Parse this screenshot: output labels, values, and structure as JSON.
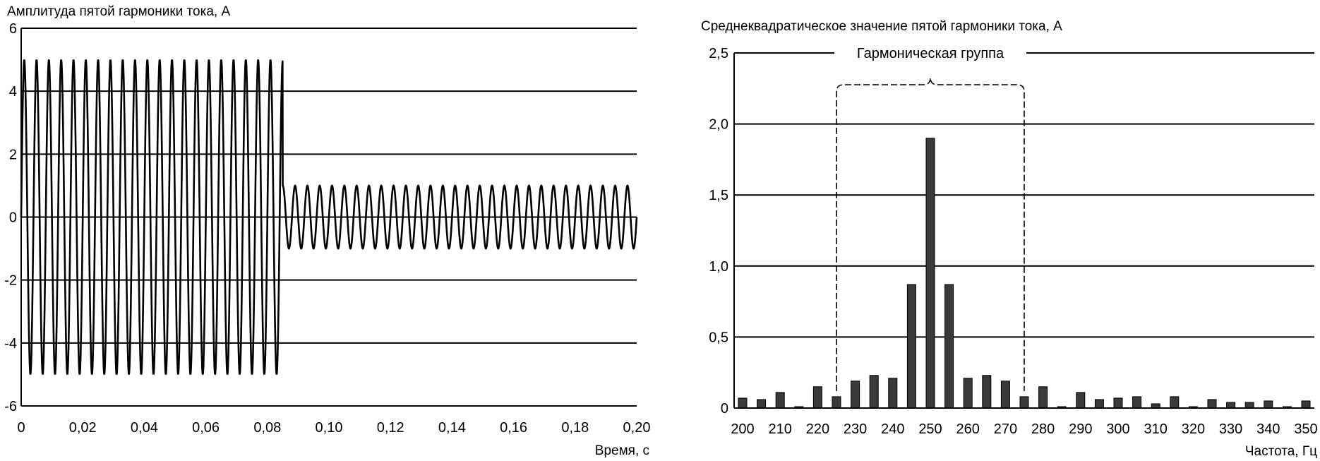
{
  "chart_data": [
    {
      "type": "line",
      "title": "Амплитуда пятой гармоники тока, А",
      "xlabel": "Время, с",
      "ylabel": "",
      "xlim": [
        0,
        0.2
      ],
      "ylim": [
        -6,
        6
      ],
      "grid": true,
      "x_ticks": [
        "0",
        "0,02",
        "0,04",
        "0,06",
        "0,08",
        "0,10",
        "0,12",
        "0,14",
        "0,16",
        "0,18",
        "0,20"
      ],
      "y_ticks": [
        "6",
        "4",
        "2",
        "0",
        "-2",
        "-4",
        "-6"
      ],
      "series": [
        {
          "signal": "sinusoid",
          "frequency_hz": 250,
          "segments": [
            {
              "t_start": 0.0,
              "t_end": 0.085,
              "amplitude": 5
            },
            {
              "t_start": 0.085,
              "t_end": 0.2,
              "amplitude": 1
            }
          ]
        }
      ]
    },
    {
      "type": "bar",
      "title": "Среднеквадратическое значение пятой гармоники тока, А",
      "xlabel": "Частота, Гц",
      "ylabel": "",
      "ylim": [
        0,
        2.5
      ],
      "grid": true,
      "x_ticks": [
        "200",
        "210",
        "220",
        "230",
        "240",
        "250",
        "260",
        "270",
        "280",
        "290",
        "300",
        "310",
        "320",
        "330",
        "340",
        "350"
      ],
      "y_ticks": [
        "2,5",
        "2,0",
        "1,5",
        "1,0",
        "0,5",
        "0"
      ],
      "categories": [
        200,
        205,
        210,
        215,
        220,
        225,
        230,
        235,
        240,
        245,
        250,
        255,
        260,
        265,
        270,
        275,
        280,
        285,
        290,
        295,
        300,
        305,
        310,
        315,
        320,
        325,
        330,
        335,
        340,
        345,
        350
      ],
      "values": [
        0.07,
        0.06,
        0.11,
        0.01,
        0.15,
        0.08,
        0.19,
        0.23,
        0.21,
        0.87,
        1.9,
        0.87,
        0.21,
        0.23,
        0.19,
        0.08,
        0.15,
        0.01,
        0.11,
        0.06,
        0.07,
        0.08,
        0.03,
        0.08,
        0.01,
        0.06,
        0.04,
        0.04,
        0.05,
        0.01,
        0.05
      ],
      "annotation": {
        "text": "Гармоническая группа",
        "from": 225,
        "to": 275
      }
    }
  ]
}
